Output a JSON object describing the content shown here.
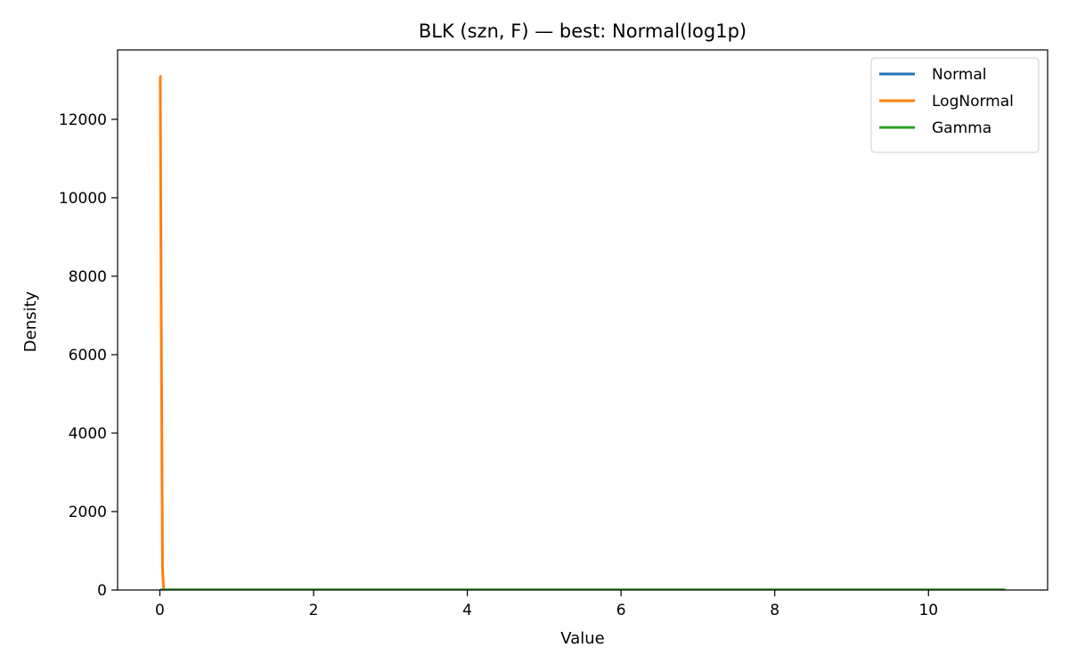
{
  "chart_data": {
    "type": "line",
    "title": "BLK (szn, F) — best: Normal(log1p)",
    "xlabel": "Value",
    "ylabel": "Density",
    "xlim": [
      -0.55,
      11.55
    ],
    "ylim": [
      0,
      13770
    ],
    "xticks": [
      0,
      2,
      4,
      6,
      8,
      10
    ],
    "yticks": [
      0,
      2000,
      4000,
      6000,
      8000,
      10000,
      12000
    ],
    "legend_position": "top-right",
    "grid": false,
    "series": [
      {
        "name": "Normal",
        "color": "#1f77b4",
        "x": [
          0,
          11
        ],
        "y": [
          0,
          0
        ]
      },
      {
        "name": "LogNormal",
        "color": "#ff7f0e",
        "x": [
          0,
          0.005,
          0.02,
          0.035,
          0.05,
          11
        ],
        "y": [
          13100,
          13100,
          6000,
          500,
          0,
          0
        ]
      },
      {
        "name": "Gamma",
        "color": "#2ca02c",
        "x": [
          0.03,
          11
        ],
        "y": [
          5,
          5
        ]
      }
    ]
  }
}
